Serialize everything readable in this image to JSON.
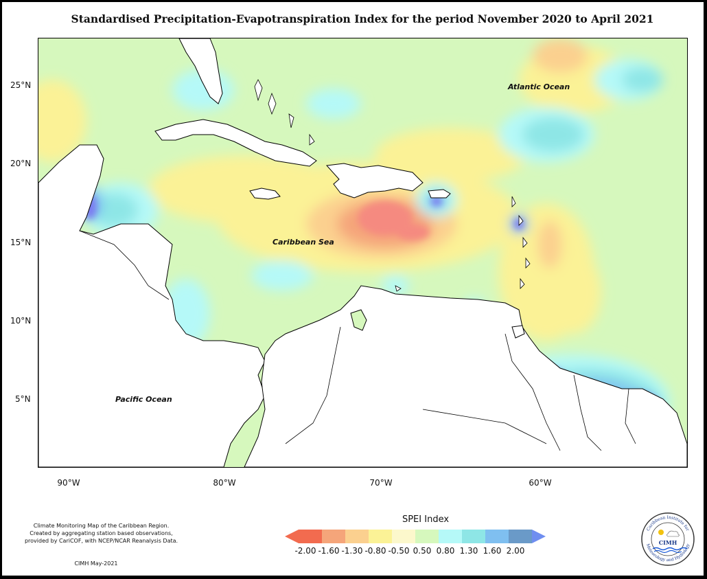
{
  "title": "Standardised Precipitation-Evapotranspiration Index for the period November 2020 to April 2021",
  "y_ticks": [
    "25°N",
    "20°N",
    "15°N",
    "10°N",
    "5°N"
  ],
  "x_ticks": [
    "90°W",
    "80°W",
    "70°W",
    "60°W"
  ],
  "labels": {
    "atlantic": "Atlantic Ocean",
    "caribbean": "Caribbean Sea",
    "pacific": "Pacific Ocean"
  },
  "credit": {
    "line1": "Climate Monitoring Map of the Caribbean Region.",
    "line2": "Created by aggregating station based observations,",
    "line3": "provided by CariCOF, with NCEP/NCAR Reanalysis Data.",
    "date": "CIMH May-2021"
  },
  "legend": {
    "title": "SPEI Index",
    "values": [
      "-2.00",
      "-1.60",
      "-1.30",
      "-0.80",
      "-0.50",
      "0.50",
      "0.80",
      "1.30",
      "1.60",
      "2.00"
    ],
    "colors": [
      "#f26b4f",
      "#f5a57a",
      "#fbd08f",
      "#fbf296",
      "#fcf8cc",
      "#d6f8bd",
      "#b5f9f8",
      "#8ee6e6",
      "#7fbff0",
      "#6a9ac8",
      "#6f8ef0"
    ]
  },
  "logo": {
    "name": "CIMH",
    "ring_top": "Caribbean Institute for",
    "ring_bottom": "Meteorology and Hydrology"
  },
  "colors": {
    "very_dry": "#f58a80",
    "dry": "#f5a57a",
    "mod_dry": "#fbd08f",
    "slight_dry": "#fbf296",
    "normal": "#d6f8bd",
    "slight_wet": "#b5f9f8",
    "mod_wet": "#8ee6e6",
    "wet": "#7fbff0",
    "very_wet": "#7b7bf0"
  }
}
